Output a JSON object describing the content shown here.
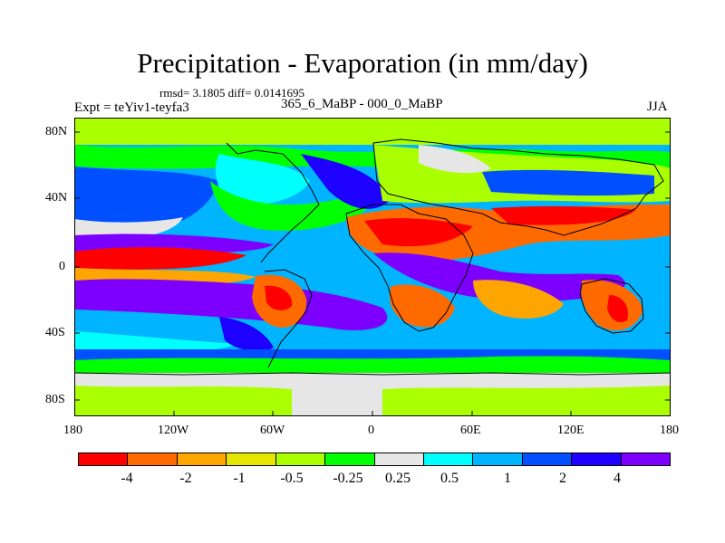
{
  "title": "Precipitation - Evaporation (in mm/day)",
  "stats": "rmsd= 3.1805 diff= 0.0141695",
  "expt": "Expt = teYiv1-teyfa3",
  "center_label": "365_6_MaBP - 000_0_MaBP",
  "season": "JJA",
  "map": {
    "lat_labels": [
      "80N",
      "40N",
      "0",
      "40S",
      "80S"
    ],
    "lon_labels": [
      "180",
      "120W",
      "60W",
      "0",
      "60E",
      "120E",
      "180"
    ]
  },
  "colorbar": {
    "colors": [
      "#ff0000",
      "#ff6a00",
      "#ffa500",
      "#e6e600",
      "#aaff00",
      "#00ff00",
      "#e6e6e6",
      "#00ffff",
      "#00b4ff",
      "#0050ff",
      "#1e00ff",
      "#7d00ff"
    ],
    "labels": [
      "-4",
      "-2",
      "-1",
      "-0.5",
      "-0.25",
      "0.25",
      "0.5",
      "1",
      "2",
      "4"
    ]
  }
}
